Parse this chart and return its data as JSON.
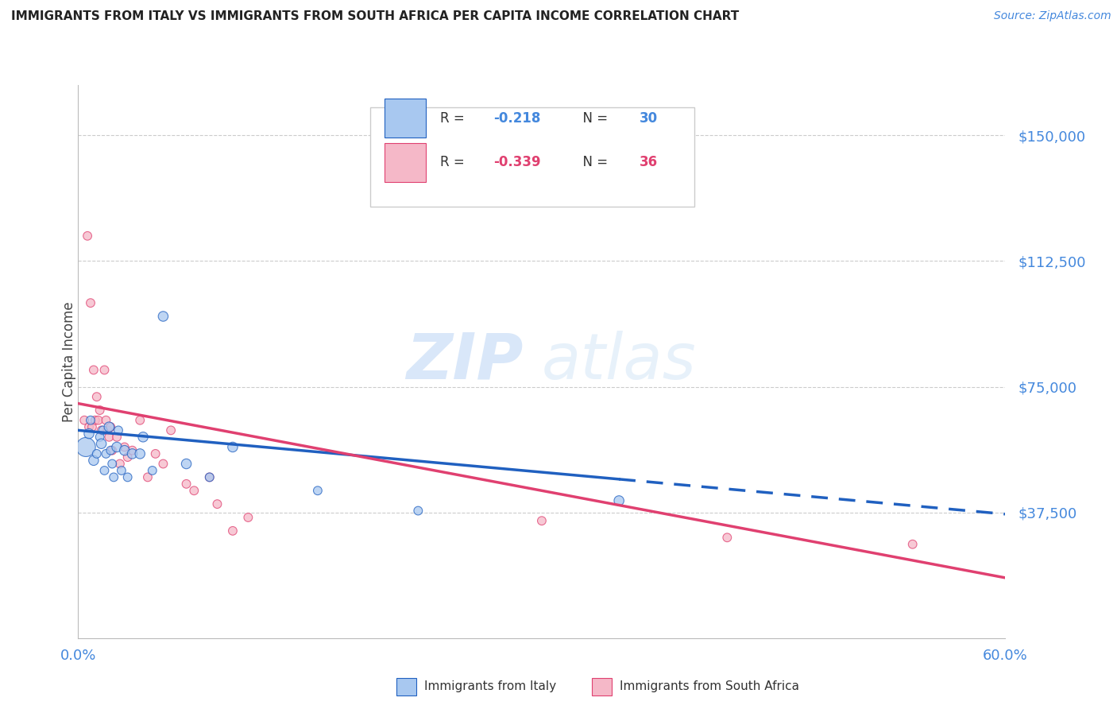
{
  "title": "IMMIGRANTS FROM ITALY VS IMMIGRANTS FROM SOUTH AFRICA PER CAPITA INCOME CORRELATION CHART",
  "source": "Source: ZipAtlas.com",
  "ylabel": "Per Capita Income",
  "legend_italy": "Immigrants from Italy",
  "legend_sa": "Immigrants from South Africa",
  "R_italy": -0.218,
  "N_italy": 30,
  "R_sa": -0.339,
  "N_sa": 36,
  "xlim": [
    0.0,
    0.6
  ],
  "ylim": [
    0,
    165000
  ],
  "yticks": [
    37500,
    75000,
    112500,
    150000
  ],
  "ytick_labels": [
    "$37,500",
    "$75,000",
    "$112,500",
    "$150,000"
  ],
  "color_italy": "#a8c8f0",
  "color_sa": "#f5b8c8",
  "line_color_italy": "#2060c0",
  "line_color_sa": "#e04070",
  "watermark_zip": "ZIP",
  "watermark_atlas": "atlas",
  "background_color": "#ffffff",
  "italy_x": [
    0.005,
    0.007,
    0.008,
    0.01,
    0.012,
    0.014,
    0.015,
    0.016,
    0.017,
    0.018,
    0.02,
    0.021,
    0.022,
    0.023,
    0.025,
    0.026,
    0.028,
    0.03,
    0.032,
    0.035,
    0.04,
    0.042,
    0.048,
    0.055,
    0.07,
    0.085,
    0.1,
    0.155,
    0.22,
    0.35
  ],
  "italy_y": [
    57000,
    61000,
    65000,
    53000,
    55000,
    60000,
    58000,
    62000,
    50000,
    55000,
    63000,
    56000,
    52000,
    48000,
    57000,
    62000,
    50000,
    56000,
    48000,
    55000,
    55000,
    60000,
    50000,
    96000,
    52000,
    48000,
    57000,
    44000,
    38000,
    41000
  ],
  "italy_size": [
    300,
    80,
    60,
    80,
    60,
    60,
    80,
    60,
    60,
    60,
    80,
    60,
    60,
    60,
    80,
    60,
    60,
    80,
    60,
    80,
    80,
    80,
    60,
    80,
    80,
    60,
    80,
    60,
    60,
    80
  ],
  "sa_x": [
    0.004,
    0.006,
    0.007,
    0.008,
    0.009,
    0.01,
    0.011,
    0.012,
    0.013,
    0.014,
    0.015,
    0.017,
    0.018,
    0.019,
    0.02,
    0.021,
    0.022,
    0.025,
    0.027,
    0.03,
    0.032,
    0.035,
    0.04,
    0.045,
    0.05,
    0.055,
    0.06,
    0.07,
    0.075,
    0.085,
    0.09,
    0.1,
    0.11,
    0.3,
    0.42,
    0.54
  ],
  "sa_y": [
    65000,
    120000,
    63000,
    100000,
    63000,
    80000,
    65000,
    72000,
    65000,
    68000,
    62000,
    80000,
    65000,
    62000,
    60000,
    63000,
    56000,
    60000,
    52000,
    57000,
    54000,
    56000,
    65000,
    48000,
    55000,
    52000,
    62000,
    46000,
    44000,
    48000,
    40000,
    32000,
    36000,
    35000,
    30000,
    28000
  ],
  "sa_size": [
    60,
    60,
    60,
    60,
    60,
    60,
    60,
    60,
    60,
    60,
    60,
    60,
    60,
    60,
    60,
    60,
    60,
    60,
    60,
    60,
    60,
    60,
    60,
    60,
    60,
    60,
    60,
    60,
    60,
    60,
    60,
    60,
    60,
    60,
    60,
    60
  ],
  "trend_italy_x0": 0.0,
  "trend_italy_y0": 62000,
  "trend_italy_x1": 0.6,
  "trend_italy_y1": 37000,
  "trend_italy_solid_end": 0.35,
  "trend_sa_x0": 0.0,
  "trend_sa_y0": 70000,
  "trend_sa_x1": 0.6,
  "trend_sa_y1": 18000
}
